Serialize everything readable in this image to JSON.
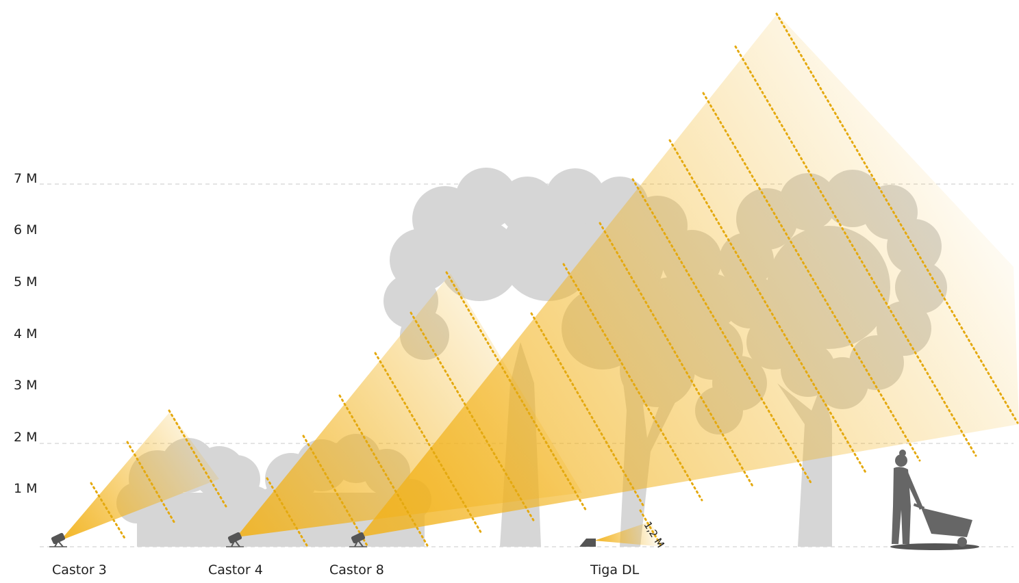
{
  "y_axis": {
    "labels": [
      "1 M",
      "2 M",
      "3 M",
      "4 M",
      "5 M",
      "6 M",
      "7 M"
    ]
  },
  "fixtures": [
    {
      "name": "Castor 3"
    },
    {
      "name": "Castor 4"
    },
    {
      "name": "Castor 8"
    },
    {
      "name": "Tiga DL"
    }
  ],
  "annotations": {
    "tiga_distance": "1,2 M"
  },
  "colors": {
    "beam": "#f2b21a",
    "beam_dots": "#e4a90f",
    "tree": "#d6d6d6",
    "gridline": "#c8c8c8",
    "fixture": "#555555",
    "person": "#666666"
  }
}
